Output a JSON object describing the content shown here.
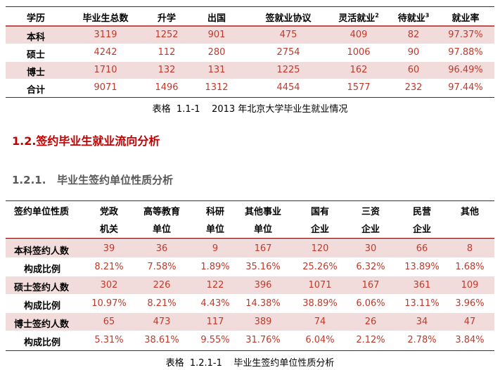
{
  "table1": {
    "header": [
      {
        "text": "学历"
      },
      {
        "text": "毕业生总数"
      },
      {
        "text": "升学"
      },
      {
        "text": "出国"
      },
      {
        "text": "签就业协议"
      },
      {
        "text": "灵活就业",
        "sup": "2"
      },
      {
        "text": "待就业",
        "sup": "3"
      },
      {
        "text": "就业率"
      }
    ],
    "rows": [
      [
        "本科",
        "3119",
        "1252",
        "901",
        "475",
        "409",
        "82",
        "97.37%"
      ],
      [
        "硕士",
        "4242",
        "112",
        "280",
        "2754",
        "1006",
        "90",
        "97.88%"
      ],
      [
        "博士",
        "1710",
        "132",
        "131",
        "1225",
        "162",
        "60",
        "96.49%"
      ],
      [
        "合计",
        "9071",
        "1496",
        "1312",
        "4454",
        "1577",
        "232",
        "97.44%"
      ]
    ],
    "caption": "表格  1.1-1    2013 年北京大学毕业生就业情况"
  },
  "section": {
    "heading": "1.2.签约毕业生就业流向分析",
    "subheading": "1.2.1.   毕业生签约单位性质分析"
  },
  "table2": {
    "header": [
      [
        "签约单位性质"
      ],
      [
        "党政",
        "机关"
      ],
      [
        "高等教育",
        "单位"
      ],
      [
        "科研",
        "单位"
      ],
      [
        "其他事业",
        "单位"
      ],
      [
        "国有",
        "企业"
      ],
      [
        "三资",
        "企业"
      ],
      [
        "民营",
        "企业"
      ],
      [
        "其他"
      ]
    ],
    "rows": [
      [
        "本科签约人数",
        "39",
        "36",
        "9",
        "167",
        "120",
        "30",
        "66",
        "8"
      ],
      [
        "构成比例",
        "8.21%",
        "7.58%",
        "1.89%",
        "35.16%",
        "25.26%",
        "6.32%",
        "13.89%",
        "1.68%"
      ],
      [
        "硕士签约人数",
        "302",
        "226",
        "122",
        "396",
        "1071",
        "167",
        "361",
        "109"
      ],
      [
        "构成比例",
        "10.97%",
        "8.21%",
        "4.43%",
        "14.38%",
        "38.89%",
        "6.06%",
        "13.11%",
        "3.96%"
      ],
      [
        "博士签约人数",
        "65",
        "473",
        "117",
        "389",
        "74",
        "26",
        "34",
        "47"
      ],
      [
        "构成比例",
        "5.31%",
        "38.61%",
        "9.55%",
        "31.76%",
        "6.04%",
        "2.12%",
        "2.78%",
        "3.84%"
      ]
    ],
    "caption": "表格  1.2.1-1    毕业生签约单位性质分析"
  }
}
